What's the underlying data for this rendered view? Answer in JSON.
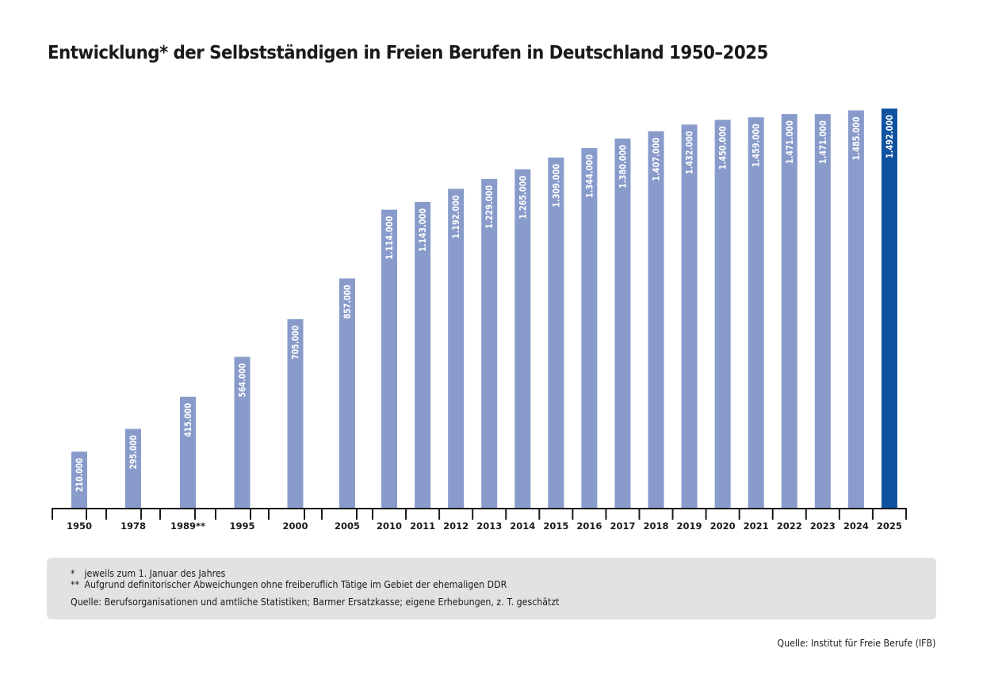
{
  "chart_data": {
    "type": "bar",
    "title": "Entwicklung* der Selbstständigen in Freien Berufen in Deutschland 1950–2025",
    "xlabel": "",
    "ylabel": "",
    "ylim": [
      0,
      1492000
    ],
    "grid": false,
    "legend": "none",
    "categories": [
      "1950",
      "1978",
      "1989**",
      "1995",
      "2000",
      "2005",
      "2010",
      "2011",
      "2012",
      "2013",
      "2014",
      "2015",
      "2016",
      "2017",
      "2018",
      "2019",
      "2020",
      "2021",
      "2022",
      "2023",
      "2024",
      "2025"
    ],
    "values": [
      210000,
      295000,
      415000,
      564000,
      705000,
      857000,
      1114000,
      1143000,
      1192000,
      1229000,
      1265000,
      1309000,
      1344000,
      1380000,
      1407000,
      1432000,
      1450000,
      1459000,
      1471000,
      1471000,
      1485000,
      1492000
    ],
    "data_labels": [
      "210.000",
      "295.000",
      "415.000",
      "564.000",
      "705.000",
      "857.000",
      "1.114.000",
      "1.143.000",
      "1.192.000",
      "1.229.000",
      "1.265.000",
      "1.309.000",
      "1.344.000",
      "1.380.000",
      "1.407.000",
      "1.432.000",
      "1.450.000",
      "1.459.000",
      "1.471.000",
      "1.471.000",
      "1.485.000",
      "1.492.000"
    ],
    "highlight_index": 21,
    "colors": {
      "bar": "#889bcb",
      "highlight": "#0f52a0",
      "axis": "#1a1a1a",
      "label": "#ffffff"
    }
  },
  "footnotes": {
    "note1_mark": "*",
    "note1_text": "jeweils zum 1. Januar des Jahres",
    "note2_mark": "**",
    "note2_text": "Aufgrund definitorischer Abweichungen ohne freiberuflich Tätige im Gebiet der ehemaligen DDR",
    "source_text": "Quelle: Berufsorganisationen und amtliche Statistiken; Barmer Ersatzkasse; eigene Erhebungen, z. T. geschätzt"
  },
  "source_credit": "Quelle: Institut für Freie Berufe (IFB)"
}
